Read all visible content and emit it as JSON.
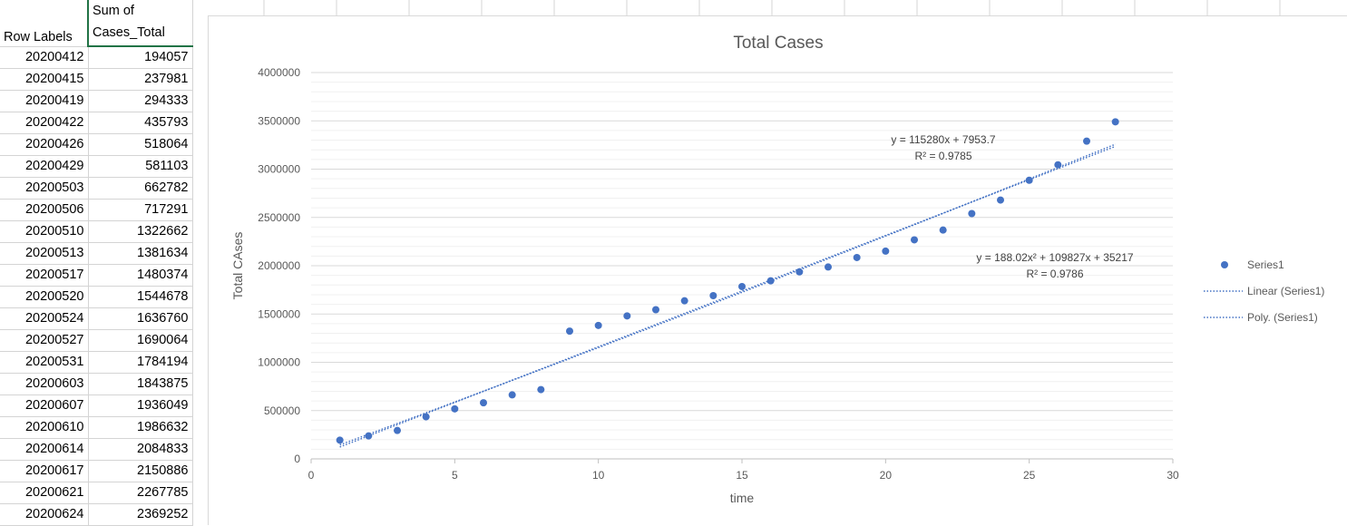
{
  "pivot": {
    "headers": {
      "row_labels": "Row Labels",
      "sum_line1": "Sum of",
      "sum_line2": "Cases_Total"
    },
    "rows": [
      {
        "label": "20200412",
        "value": "194057"
      },
      {
        "label": "20200415",
        "value": "237981"
      },
      {
        "label": "20200419",
        "value": "294333"
      },
      {
        "label": "20200422",
        "value": "435793"
      },
      {
        "label": "20200426",
        "value": "518064"
      },
      {
        "label": "20200429",
        "value": "581103"
      },
      {
        "label": "20200503",
        "value": "662782"
      },
      {
        "label": "20200506",
        "value": "717291"
      },
      {
        "label": "20200510",
        "value": "1322662"
      },
      {
        "label": "20200513",
        "value": "1381634"
      },
      {
        "label": "20200517",
        "value": "1480374"
      },
      {
        "label": "20200520",
        "value": "1544678"
      },
      {
        "label": "20200524",
        "value": "1636760"
      },
      {
        "label": "20200527",
        "value": "1690064"
      },
      {
        "label": "20200531",
        "value": "1784194"
      },
      {
        "label": "20200603",
        "value": "1843875"
      },
      {
        "label": "20200607",
        "value": "1936049"
      },
      {
        "label": "20200610",
        "value": "1986632"
      },
      {
        "label": "20200614",
        "value": "2084833"
      },
      {
        "label": "20200617",
        "value": "2150886"
      },
      {
        "label": "20200621",
        "value": "2267785"
      },
      {
        "label": "20200624",
        "value": "2369252"
      }
    ]
  },
  "chart_data": {
    "type": "scatter",
    "title": "Total Cases",
    "xlabel": "time",
    "ylabel": "Total CAses",
    "xlim": [
      0,
      30
    ],
    "ylim": [
      0,
      4000000
    ],
    "x_ticks": [
      "0",
      "5",
      "10",
      "15",
      "20",
      "25",
      "30"
    ],
    "y_ticks": [
      "0",
      "500000",
      "1000000",
      "1500000",
      "2000000",
      "2500000",
      "3000000",
      "3500000",
      "4000000"
    ],
    "grid": true,
    "legend_position": "right",
    "point_color": "#4472c4",
    "series": [
      {
        "name": "Series1",
        "x": [
          1,
          2,
          3,
          4,
          5,
          6,
          7,
          8,
          9,
          10,
          11,
          12,
          13,
          14,
          15,
          16,
          17,
          18,
          19,
          20,
          21,
          22,
          23,
          24,
          25,
          26,
          27,
          28
        ],
        "y": [
          194057,
          237981,
          294333,
          435793,
          518064,
          581103,
          662782,
          717291,
          1322662,
          1381634,
          1480374,
          1544678,
          1636760,
          1690064,
          1784194,
          1843875,
          1936049,
          1986632,
          2084833,
          2150886,
          2267785,
          2369252,
          2540000,
          2680000,
          2885000,
          3045000,
          3290000,
          3490000
        ]
      }
    ],
    "trendlines": [
      {
        "name": "Linear (Series1)",
        "type": "linear",
        "a": 115280,
        "b": 7953.7,
        "equation": "y = 115280x + 7953.7",
        "r2": "R² = 0.9785"
      },
      {
        "name": "Poly. (Series1)",
        "type": "poly",
        "a2": 188.02,
        "a1": 109827,
        "a0": 35217,
        "equation": "y = 188.02x² + 109827x + 35217",
        "r2": "R² = 0.9786"
      }
    ]
  }
}
